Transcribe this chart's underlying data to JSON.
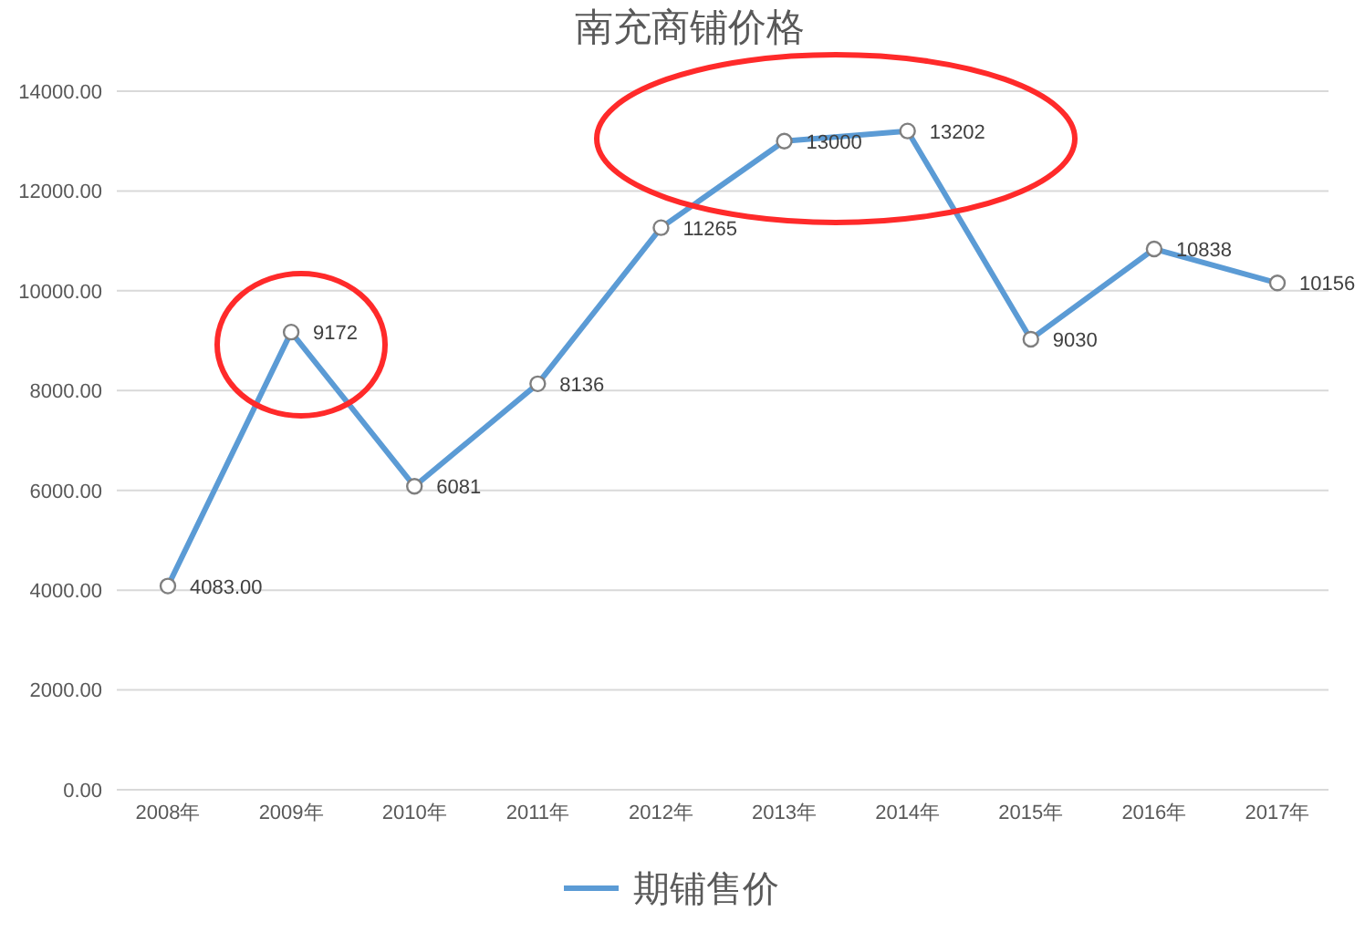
{
  "chart_data": {
    "type": "line",
    "title": "南充商铺价格",
    "categories": [
      "2008年",
      "2009年",
      "2010年",
      "2011年",
      "2012年",
      "2013年",
      "2014年",
      "2015年",
      "2016年",
      "2017年"
    ],
    "series": [
      {
        "name": "期铺售价",
        "color": "#5b9bd5",
        "values": [
          4083,
          9172,
          6081,
          8136,
          11265,
          13000,
          13202,
          9030,
          10838,
          10156
        ],
        "value_labels": [
          "4083.00",
          "9172",
          "6081",
          "8136",
          "11265",
          "13000",
          "13202",
          "9030",
          "10838",
          "10156"
        ]
      }
    ],
    "ylim": [
      0,
      14000
    ],
    "yticks": [
      {
        "value": 0,
        "label": "0.00"
      },
      {
        "value": 2000,
        "label": "2000.00"
      },
      {
        "value": 4000,
        "label": "4000.00"
      },
      {
        "value": 6000,
        "label": "6000.00"
      },
      {
        "value": 8000,
        "label": "8000.00"
      },
      {
        "value": 10000,
        "label": "10000.00"
      },
      {
        "value": 12000,
        "label": "12000.00"
      },
      {
        "value": 14000,
        "label": "14000.00"
      }
    ],
    "grid": "y",
    "legend": "bottom",
    "marker": "circle",
    "line_style": "solid"
  }
}
